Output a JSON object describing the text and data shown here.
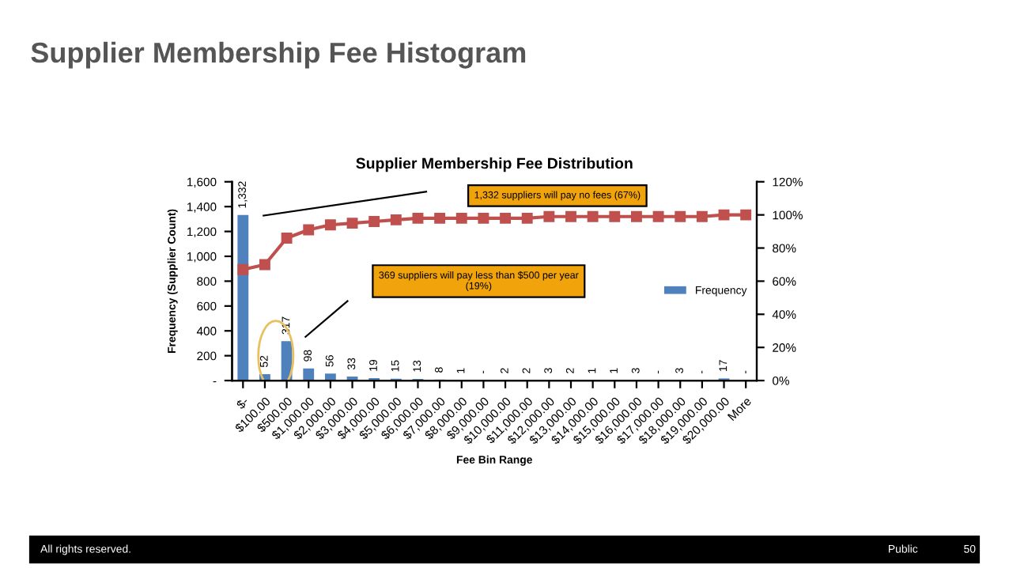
{
  "chart_data": {
    "type": "bar",
    "title": "Supplier Membership Fee Histogram",
    "subtitle": "Supplier Membership Fee Distribution",
    "xlabel": "Fee Bin Range",
    "ylabel": "Frequency (Supplier Count)",
    "categories": [
      "$-",
      "$100.00",
      "$500.00",
      "$1,000.00",
      "$2,000.00",
      "$3,000.00",
      "$4,000.00",
      "$5,000.00",
      "$6,000.00",
      "$7,000.00",
      "$8,000.00",
      "$9,000.00",
      "$10,000.00",
      "$11,000.00",
      "$12,000.00",
      "$13,000.00",
      "$14,000.00",
      "$15,000.00",
      "$16,000.00",
      "$17,000.00",
      "$18,000.00",
      "$19,000.00",
      "$20,000.00",
      "More"
    ],
    "series": [
      {
        "name": "Frequency",
        "color": "#4f81bd",
        "values": [
          1332,
          52,
          317,
          98,
          56,
          33,
          19,
          15,
          13,
          8,
          1,
          0,
          2,
          2,
          3,
          2,
          1,
          1,
          3,
          0,
          3,
          0,
          17,
          0
        ],
        "value_labels": [
          "1,332",
          "52",
          "317",
          "98",
          "56",
          "33",
          "19",
          "15",
          "13",
          "8",
          "1",
          "-",
          "2",
          "2",
          "3",
          "2",
          "1",
          "1",
          "3",
          "-",
          "3",
          "-",
          "17",
          "-"
        ]
      },
      {
        "type": "line",
        "axis": "y2",
        "color": "#c0504d",
        "marker": "square",
        "values": [
          67,
          70,
          86,
          91,
          94,
          95,
          96,
          97,
          98,
          98,
          98,
          98,
          98,
          98,
          99,
          99,
          99,
          99,
          99,
          99,
          99,
          99,
          100,
          100
        ]
      }
    ],
    "ylim": [
      0,
      1600
    ],
    "yticks": [
      {
        "value": 0,
        "label": "-"
      },
      200,
      400,
      600,
      800,
      {
        "value": 1000,
        "label": "1,000"
      },
      {
        "value": 1200,
        "label": "1,200"
      },
      {
        "value": 1400,
        "label": "1,400"
      },
      {
        "value": 1600,
        "label": "1,600"
      }
    ],
    "y2lim": [
      0,
      120
    ],
    "y2ticks": [
      {
        "value": 0,
        "label": "0%"
      },
      {
        "value": 20,
        "label": "20%"
      },
      {
        "value": 40,
        "label": "40%"
      },
      {
        "value": 60,
        "label": "60%"
      },
      {
        "value": 80,
        "label": "80%"
      },
      {
        "value": 100,
        "label": "100%"
      },
      {
        "value": 120,
        "label": "120%"
      }
    ],
    "grid": false,
    "legend": "right",
    "annotations": [
      "1,332 suppliers will pay no fees (67%)",
      "369 suppliers will pay less than $500 per year\n(19%)",
      "All rights reserved.",
      "Public",
      "50"
    ]
  }
}
